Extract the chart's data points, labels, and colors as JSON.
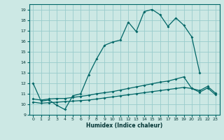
{
  "xlabel": "Humidex (Indice chaleur)",
  "bg_color": "#cce8e4",
  "grid_color": "#99cccc",
  "line_color": "#006666",
  "xlim": [
    -0.5,
    23.5
  ],
  "ylim": [
    9,
    19.5
  ],
  "xticks": [
    0,
    1,
    2,
    3,
    4,
    5,
    6,
    7,
    8,
    9,
    10,
    11,
    12,
    13,
    14,
    15,
    16,
    17,
    18,
    19,
    20,
    21,
    22,
    23
  ],
  "yticks": [
    9,
    10,
    11,
    12,
    13,
    14,
    15,
    16,
    17,
    18,
    19
  ],
  "lines": [
    {
      "x": [
        0,
        1,
        2,
        3,
        4,
        5,
        6,
        7,
        8,
        9,
        10,
        11,
        12,
        13,
        14,
        15,
        16,
        17,
        18,
        19,
        20,
        21
      ],
      "y": [
        12,
        10.3,
        10.4,
        9.9,
        9.5,
        10.8,
        11.0,
        12.8,
        14.3,
        15.6,
        15.9,
        16.1,
        17.8,
        16.9,
        18.8,
        19.0,
        18.5,
        17.4,
        18.2,
        17.5,
        16.4,
        13.0
      ]
    },
    {
      "x": [
        0,
        1,
        2,
        3,
        4,
        5,
        6,
        7,
        8,
        9,
        10,
        11,
        12,
        13,
        14,
        15,
        16,
        17,
        18,
        19,
        20,
        21,
        22,
        23
      ],
      "y": [
        10.2,
        10.1,
        10.15,
        10.2,
        10.25,
        10.3,
        10.35,
        10.4,
        10.5,
        10.6,
        10.7,
        10.8,
        10.9,
        11.0,
        11.1,
        11.2,
        11.3,
        11.4,
        11.5,
        11.6,
        11.5,
        11.15,
        11.55,
        10.9
      ]
    },
    {
      "x": [
        0,
        1,
        2,
        3,
        4,
        5,
        6,
        7,
        8,
        9,
        10,
        11,
        12,
        13,
        14,
        15,
        16,
        17,
        18,
        19,
        20,
        21,
        22,
        23
      ],
      "y": [
        10.5,
        10.4,
        10.5,
        10.55,
        10.55,
        10.65,
        10.75,
        10.85,
        11.0,
        11.1,
        11.2,
        11.35,
        11.5,
        11.65,
        11.8,
        11.95,
        12.1,
        12.2,
        12.4,
        12.6,
        11.5,
        11.3,
        11.7,
        11.05
      ]
    }
  ]
}
